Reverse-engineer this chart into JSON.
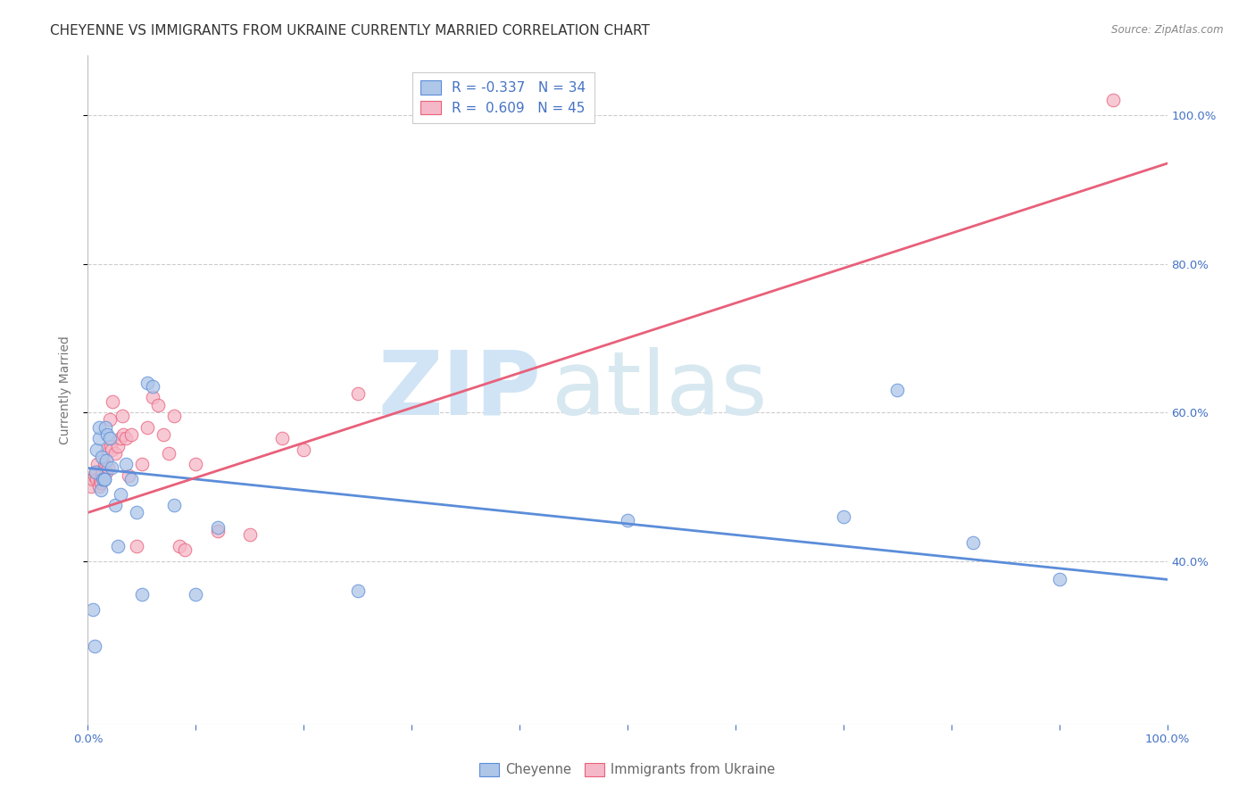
{
  "title": "CHEYENNE VS IMMIGRANTS FROM UKRAINE CURRENTLY MARRIED CORRELATION CHART",
  "source": "Source: ZipAtlas.com",
  "ylabel": "Currently Married",
  "legend_label_blue": "Cheyenne",
  "legend_label_pink": "Immigrants from Ukraine",
  "R_blue": -0.337,
  "N_blue": 34,
  "R_pink": 0.609,
  "N_pink": 45,
  "xlim": [
    0.0,
    1.0
  ],
  "ylim": [
    0.18,
    1.08
  ],
  "xticks": [
    0.0,
    0.1,
    0.2,
    0.3,
    0.4,
    0.5,
    0.6,
    0.7,
    0.8,
    0.9,
    1.0
  ],
  "yticks": [
    0.4,
    0.6,
    0.8,
    1.0
  ],
  "right_ytick_labels": [
    "40.0%",
    "60.0%",
    "80.0%",
    "100.0%"
  ],
  "watermark_zip": "ZIP",
  "watermark_atlas": "atlas",
  "blue_color": "#aec6e8",
  "pink_color": "#f5b8c8",
  "blue_line_color": "#5b8dd9",
  "pink_line_color": "#e8607a",
  "blue_edge_color": "#5b8dd9",
  "pink_edge_color": "#e8607a",
  "grid_color": "#cccccc",
  "tick_color": "#4472c4",
  "blue_line_x": [
    0.0,
    1.0
  ],
  "blue_line_y": [
    0.525,
    0.375
  ],
  "pink_line_x": [
    0.0,
    1.0
  ],
  "pink_line_y": [
    0.465,
    0.935
  ],
  "blue_scatter_x": [
    0.005,
    0.006,
    0.007,
    0.008,
    0.01,
    0.01,
    0.012,
    0.013,
    0.014,
    0.015,
    0.015,
    0.016,
    0.017,
    0.018,
    0.02,
    0.022,
    0.025,
    0.028,
    0.03,
    0.035,
    0.04,
    0.045,
    0.05,
    0.055,
    0.06,
    0.08,
    0.1,
    0.12,
    0.25,
    0.5,
    0.7,
    0.75,
    0.82,
    0.9
  ],
  "blue_scatter_y": [
    0.335,
    0.285,
    0.52,
    0.55,
    0.565,
    0.58,
    0.495,
    0.54,
    0.51,
    0.51,
    0.51,
    0.58,
    0.535,
    0.57,
    0.565,
    0.525,
    0.475,
    0.42,
    0.49,
    0.53,
    0.51,
    0.465,
    0.355,
    0.64,
    0.635,
    0.475,
    0.355,
    0.445,
    0.36,
    0.455,
    0.46,
    0.63,
    0.425,
    0.375
  ],
  "pink_scatter_x": [
    0.003,
    0.005,
    0.006,
    0.007,
    0.008,
    0.009,
    0.01,
    0.011,
    0.012,
    0.013,
    0.014,
    0.015,
    0.016,
    0.017,
    0.018,
    0.019,
    0.02,
    0.021,
    0.022,
    0.023,
    0.025,
    0.028,
    0.03,
    0.032,
    0.033,
    0.035,
    0.038,
    0.04,
    0.045,
    0.05,
    0.055,
    0.06,
    0.065,
    0.07,
    0.075,
    0.08,
    0.085,
    0.09,
    0.1,
    0.12,
    0.15,
    0.18,
    0.2,
    0.25,
    0.95
  ],
  "pink_scatter_y": [
    0.5,
    0.51,
    0.515,
    0.52,
    0.51,
    0.53,
    0.5,
    0.51,
    0.505,
    0.515,
    0.52,
    0.53,
    0.525,
    0.52,
    0.55,
    0.525,
    0.59,
    0.555,
    0.55,
    0.615,
    0.545,
    0.555,
    0.565,
    0.595,
    0.57,
    0.565,
    0.515,
    0.57,
    0.42,
    0.53,
    0.58,
    0.62,
    0.61,
    0.57,
    0.545,
    0.595,
    0.42,
    0.415,
    0.53,
    0.44,
    0.435,
    0.565,
    0.55,
    0.625,
    1.02
  ],
  "title_fontsize": 11,
  "tick_fontsize": 9.5,
  "label_fontsize": 10,
  "scatter_size": 110,
  "line_width": 2.0
}
